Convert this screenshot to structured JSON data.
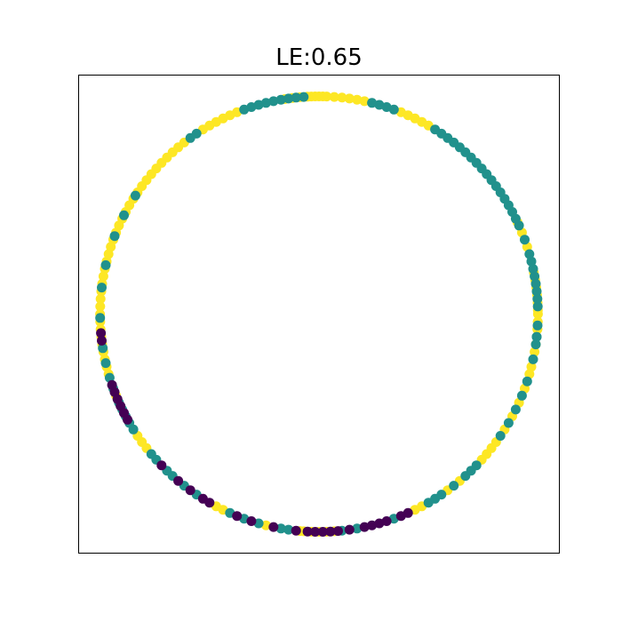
{
  "chart_data": {
    "type": "scatter",
    "title": "LE:0.65",
    "xlabel": "",
    "ylabel": "",
    "grid": false,
    "xticks": [],
    "yticks": [],
    "legend": "none",
    "shape": "unit circle",
    "point_radius": 1.0,
    "xlim": [
      -1.1,
      1.1
    ],
    "ylim": [
      -1.1,
      1.1
    ],
    "class_colors": {
      "0": "#440154",
      "1": "#21918c",
      "2": "#fde725"
    },
    "series": [
      {
        "class": 2,
        "angles_deg": [
          -4,
          -2,
          0,
          1,
          3,
          5,
          7,
          9,
          11,
          18,
          22,
          25,
          60,
          62,
          64,
          66,
          68,
          78,
          80,
          82,
          84,
          86,
          88,
          89,
          90,
          91,
          92,
          93,
          95,
          97,
          99,
          112,
          114,
          116,
          118,
          120,
          122,
          128,
          130,
          132,
          134,
          136,
          138,
          140,
          142,
          144,
          146,
          148,
          150,
          152,
          154,
          156,
          158,
          160,
          162,
          164,
          166,
          168,
          170,
          172,
          174,
          176,
          178,
          180,
          182,
          184,
          186,
          188,
          190,
          192,
          194,
          196,
          202,
          214,
          216,
          218,
          242,
          244,
          256,
          265,
          266,
          268,
          270,
          272,
          274,
          296,
          298,
          306,
          310,
          318,
          320,
          322,
          324,
          328,
          332,
          336,
          340,
          344,
          346,
          350,
          352,
          356,
          358
        ]
      },
      {
        "class": 1,
        "angles_deg": [
          -8,
          -6,
          -3,
          2,
          4,
          6,
          8,
          10,
          12,
          14,
          16,
          20,
          24,
          26,
          28,
          30,
          32,
          34,
          36,
          38,
          40,
          42,
          44,
          46,
          48,
          50,
          52,
          54,
          56,
          58,
          70,
          72,
          74,
          76,
          94,
          96,
          98,
          100,
          102,
          104,
          106,
          108,
          110,
          124,
          126,
          147,
          153,
          159,
          167,
          173,
          181,
          189,
          193,
          197,
          200,
          204,
          206,
          208,
          210,
          212,
          220,
          222,
          226,
          228,
          232,
          236,
          246,
          250,
          254,
          260,
          262,
          276,
          280,
          290,
          300,
          302,
          304,
          308,
          312,
          314,
          316,
          326,
          330,
          334,
          338,
          342,
          348,
          354
        ]
      },
      {
        "class": 0,
        "angles_deg": [
          185,
          187,
          199,
          201,
          203,
          205,
          207,
          209,
          224,
          230,
          234,
          238,
          240,
          248,
          252,
          258,
          264,
          267,
          269,
          271,
          273,
          275,
          278,
          282,
          284,
          286,
          288,
          292,
          294
        ]
      }
    ]
  }
}
